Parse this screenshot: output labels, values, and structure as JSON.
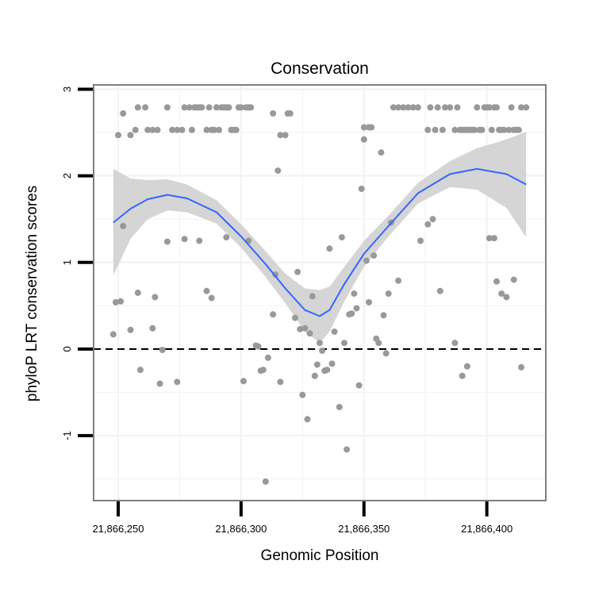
{
  "chart_data": {
    "type": "scatter",
    "title": "Conservation",
    "xlabel": "Genomic Position",
    "ylabel": "phyloP LRT conservation scores",
    "xlim": [
      21866240,
      21866424
    ],
    "ylim": [
      -1.75,
      3.05
    ],
    "xticks": [
      21866250,
      21866300,
      21866350,
      21866400
    ],
    "xtick_labels": [
      "21,866,250",
      "21,866,300",
      "21,866,350",
      "21,866,400"
    ],
    "yticks": [
      -1,
      0,
      1,
      2,
      3
    ],
    "ytick_labels": [
      "-1",
      "0",
      "1",
      "2",
      "3"
    ],
    "grid": true,
    "legend": "none",
    "reference_line": {
      "y": 0,
      "style": "dashed"
    },
    "colors": {
      "points": "#999999",
      "smooth": "#3366ff",
      "ribbon": "#d3d3d3",
      "panel_border": "#7f7f7f"
    },
    "points": [
      [
        21866248,
        0.17
      ],
      [
        21866249,
        0.54
      ],
      [
        21866251,
        0.55
      ],
      [
        21866252,
        1.42
      ],
      [
        21866255,
        0.22
      ],
      [
        21866258,
        0.65
      ],
      [
        21866259,
        -0.24
      ],
      [
        21866264,
        0.24
      ],
      [
        21866265,
        0.6
      ],
      [
        21866267,
        -0.4
      ],
      [
        21866268,
        -0.01
      ],
      [
        21866270,
        1.24
      ],
      [
        21866274,
        -0.38
      ],
      [
        21866277,
        1.27
      ],
      [
        21866283,
        1.25
      ],
      [
        21866286,
        0.67
      ],
      [
        21866288,
        0.59
      ],
      [
        21866294,
        1.29
      ],
      [
        21866301,
        -0.37
      ],
      [
        21866303,
        1.25
      ],
      [
        21866306,
        0.04
      ],
      [
        21866307,
        0.03
      ],
      [
        21866308,
        -0.25
      ],
      [
        21866309,
        -0.24
      ],
      [
        21866310,
        -1.53
      ],
      [
        21866311,
        -0.1
      ],
      [
        21866313,
        0.4
      ],
      [
        21866314,
        0.86
      ],
      [
        21866315,
        2.06
      ],
      [
        21866316,
        -0.38
      ],
      [
        21866322,
        0.36
      ],
      [
        21866323,
        0.89
      ],
      [
        21866324,
        0.23
      ],
      [
        21866325,
        -0.53
      ],
      [
        21866326,
        0.24
      ],
      [
        21866327,
        -0.81
      ],
      [
        21866328,
        0.18
      ],
      [
        21866329,
        0.61
      ],
      [
        21866330,
        -0.31
      ],
      [
        21866331,
        -0.18
      ],
      [
        21866332,
        0.07
      ],
      [
        21866333,
        -0.02
      ],
      [
        21866334,
        -0.25
      ],
      [
        21866335,
        -0.24
      ],
      [
        21866336,
        1.16
      ],
      [
        21866337,
        -0.17
      ],
      [
        21866338,
        0.2
      ],
      [
        21866340,
        -0.67
      ],
      [
        21866341,
        1.29
      ],
      [
        21866342,
        0.07
      ],
      [
        21866343,
        -1.16
      ],
      [
        21866344,
        0.4
      ],
      [
        21866345,
        0.41
      ],
      [
        21866346,
        0.64
      ],
      [
        21866347,
        0.47
      ],
      [
        21866348,
        -0.42
      ],
      [
        21866349,
        1.85
      ],
      [
        21866350,
        2.42
      ],
      [
        21866351,
        1.02
      ],
      [
        21866352,
        0.54
      ],
      [
        21866354,
        1.08
      ],
      [
        21866355,
        0.12
      ],
      [
        21866356,
        0.07
      ],
      [
        21866357,
        2.27
      ],
      [
        21866358,
        0.39
      ],
      [
        21866359,
        -0.05
      ],
      [
        21866360,
        0.64
      ],
      [
        21866361,
        1.46
      ],
      [
        21866364,
        0.79
      ],
      [
        21866373,
        1.25
      ],
      [
        21866376,
        1.44
      ],
      [
        21866378,
        1.5
      ],
      [
        21866381,
        0.67
      ],
      [
        21866387,
        0.07
      ],
      [
        21866390,
        -0.31
      ],
      [
        21866392,
        -0.2
      ],
      [
        21866401,
        1.28
      ],
      [
        21866403,
        1.28
      ],
      [
        21866404,
        0.78
      ],
      [
        21866406,
        0.64
      ],
      [
        21866408,
        0.6
      ],
      [
        21866411,
        0.8
      ],
      [
        21866414,
        -0.21
      ],
      [
        21866250,
        2.47
      ],
      [
        21866252,
        2.72
      ],
      [
        21866255,
        2.47
      ],
      [
        21866257,
        2.53
      ],
      [
        21866258,
        2.79
      ],
      [
        21866261,
        2.79
      ],
      [
        21866262,
        2.53
      ],
      [
        21866264,
        2.53
      ],
      [
        21866266,
        2.53
      ],
      [
        21866270,
        2.79
      ],
      [
        21866272,
        2.53
      ],
      [
        21866274,
        2.53
      ],
      [
        21866276,
        2.53
      ],
      [
        21866277,
        2.79
      ],
      [
        21866279,
        2.79
      ],
      [
        21866280,
        2.53
      ],
      [
        21866281,
        2.79
      ],
      [
        21866282,
        2.79
      ],
      [
        21866283,
        2.79
      ],
      [
        21866284,
        2.79
      ],
      [
        21866286,
        2.53
      ],
      [
        21866287,
        2.79
      ],
      [
        21866288,
        2.53
      ],
      [
        21866289,
        2.53
      ],
      [
        21866290,
        2.79
      ],
      [
        21866291,
        2.53
      ],
      [
        21866292,
        2.79
      ],
      [
        21866293,
        2.79
      ],
      [
        21866294,
        2.79
      ],
      [
        21866295,
        2.79
      ],
      [
        21866296,
        2.53
      ],
      [
        21866297,
        2.53
      ],
      [
        21866298,
        2.53
      ],
      [
        21866299,
        2.79
      ],
      [
        21866300,
        2.79
      ],
      [
        21866302,
        2.79
      ],
      [
        21866303,
        2.79
      ],
      [
        21866304,
        2.79
      ],
      [
        21866313,
        2.72
      ],
      [
        21866316,
        2.47
      ],
      [
        21866318,
        2.47
      ],
      [
        21866319,
        2.72
      ],
      [
        21866320,
        2.72
      ],
      [
        21866350,
        2.56
      ],
      [
        21866352,
        2.56
      ],
      [
        21866353,
        2.56
      ],
      [
        21866362,
        2.79
      ],
      [
        21866364,
        2.79
      ],
      [
        21866366,
        2.79
      ],
      [
        21866368,
        2.79
      ],
      [
        21866370,
        2.79
      ],
      [
        21866372,
        2.79
      ],
      [
        21866376,
        2.53
      ],
      [
        21866377,
        2.79
      ],
      [
        21866379,
        2.53
      ],
      [
        21866380,
        2.79
      ],
      [
        21866382,
        2.53
      ],
      [
        21866383,
        2.79
      ],
      [
        21866385,
        2.79
      ],
      [
        21866387,
        2.53
      ],
      [
        21866388,
        2.79
      ],
      [
        21866389,
        2.53
      ],
      [
        21866390,
        2.53
      ],
      [
        21866391,
        2.53
      ],
      [
        21866392,
        2.53
      ],
      [
        21866393,
        2.53
      ],
      [
        21866394,
        2.53
      ],
      [
        21866395,
        2.53
      ],
      [
        21866396,
        2.79
      ],
      [
        21866397,
        2.53
      ],
      [
        21866398,
        2.53
      ],
      [
        21866399,
        2.79
      ],
      [
        21866400,
        2.79
      ],
      [
        21866401,
        2.79
      ],
      [
        21866402,
        2.53
      ],
      [
        21866403,
        2.79
      ],
      [
        21866404,
        2.79
      ],
      [
        21866405,
        2.53
      ],
      [
        21866406,
        2.53
      ],
      [
        21866407,
        2.53
      ],
      [
        21866409,
        2.53
      ],
      [
        21866410,
        2.79
      ],
      [
        21866411,
        2.53
      ],
      [
        21866412,
        2.53
      ],
      [
        21866413,
        2.53
      ],
      [
        21866414,
        2.79
      ],
      [
        21866416,
        2.79
      ]
    ],
    "smooth": {
      "x": [
        21866248,
        21866255,
        21866262,
        21866270,
        21866278,
        21866290,
        21866300,
        21866310,
        21866318,
        21866326,
        21866332,
        21866336,
        21866342,
        21866350,
        21866360,
        21866372,
        21866385,
        21866396,
        21866408,
        21866416
      ],
      "y": [
        1.46,
        1.62,
        1.73,
        1.78,
        1.74,
        1.58,
        1.3,
        0.98,
        0.7,
        0.45,
        0.38,
        0.45,
        0.75,
        1.1,
        1.42,
        1.8,
        2.02,
        2.08,
        2.02,
        1.9
      ],
      "lower": [
        0.85,
        1.27,
        1.5,
        1.6,
        1.58,
        1.45,
        1.17,
        0.83,
        0.53,
        0.2,
        0.07,
        0.2,
        0.55,
        0.95,
        1.3,
        1.68,
        1.87,
        1.84,
        1.63,
        1.29
      ],
      "upper": [
        2.08,
        1.97,
        1.95,
        1.96,
        1.9,
        1.72,
        1.44,
        1.13,
        0.87,
        0.7,
        0.68,
        0.72,
        0.95,
        1.25,
        1.54,
        1.92,
        2.17,
        2.32,
        2.42,
        2.51
      ]
    }
  }
}
